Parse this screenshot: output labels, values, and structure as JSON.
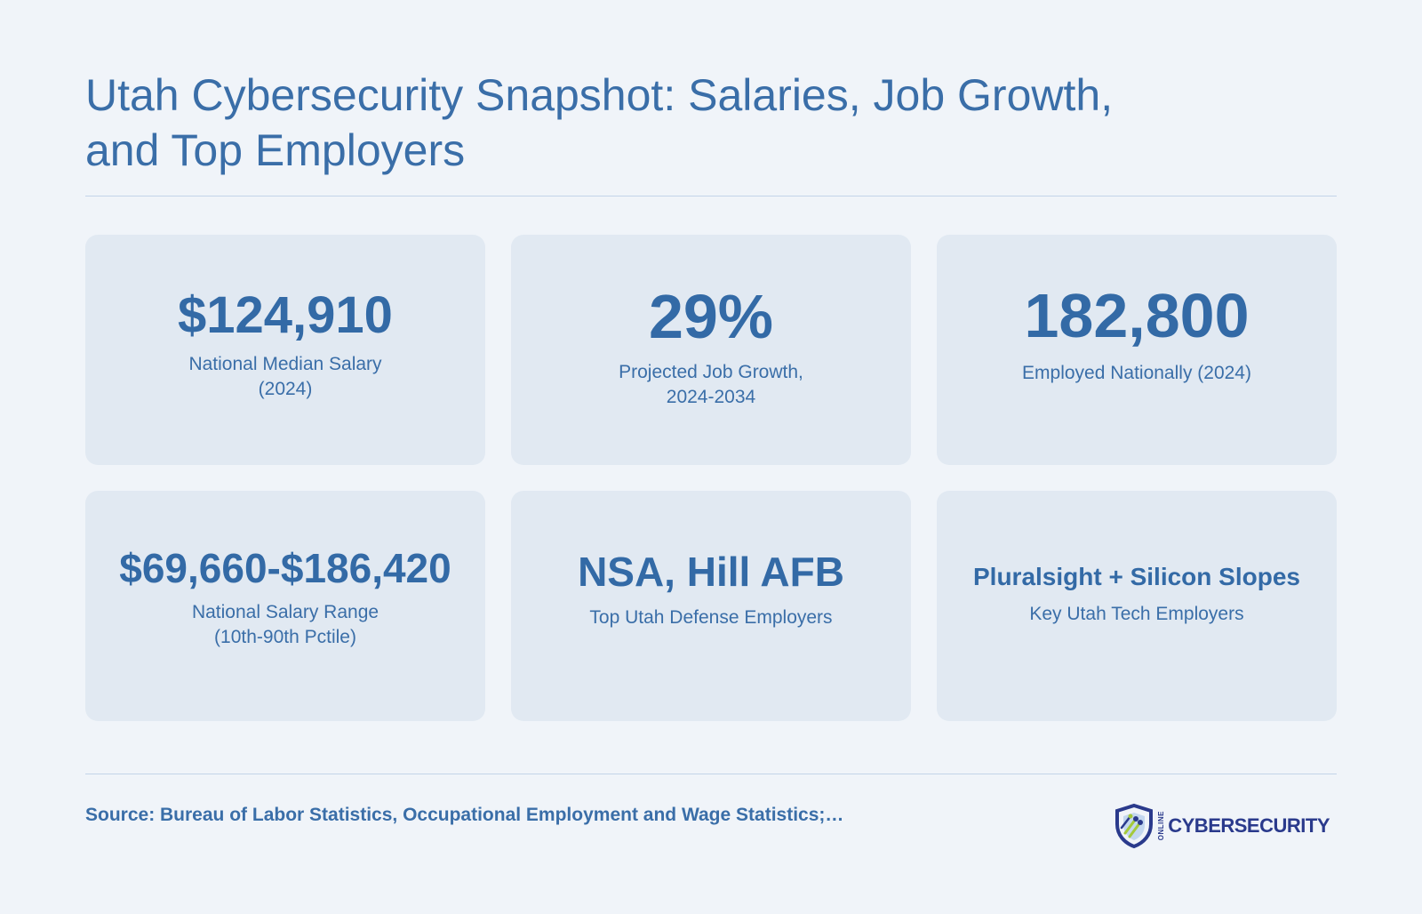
{
  "title": "Utah Cybersecurity Snapshot: Salaries, Job Growth, and Top Employers",
  "stats": [
    {
      "value": "$124,910",
      "label": "National Median Salary\n(2024)"
    },
    {
      "value": "29%",
      "label": "Projected Job Growth,\n2024-2034"
    },
    {
      "value": "182,800",
      "label": "Employed Nationally (2024)"
    },
    {
      "value": "$69,660-$186,420",
      "label": "National Salary Range\n(10th-90th Pctile)"
    },
    {
      "value": "NSA, Hill AFB",
      "label": "Top Utah Defense Employers"
    },
    {
      "value": "Pluralsight + Silicon Slopes",
      "label": "Key Utah Tech Employers"
    }
  ],
  "footer": {
    "source": "Source: Bureau of Labor Statistics, Occupational Employment and Wage Statistics;…",
    "logo": {
      "online": "ONLINE",
      "brand": "CYBERSECURITY",
      "icon": "shield-circuit-icon"
    }
  },
  "colors": {
    "primary": "#3a6ea8",
    "card": "#e1e9f2",
    "background": "#f0f4f9",
    "logo": "#2a3a8c",
    "accent_green": "#a4c93a"
  }
}
